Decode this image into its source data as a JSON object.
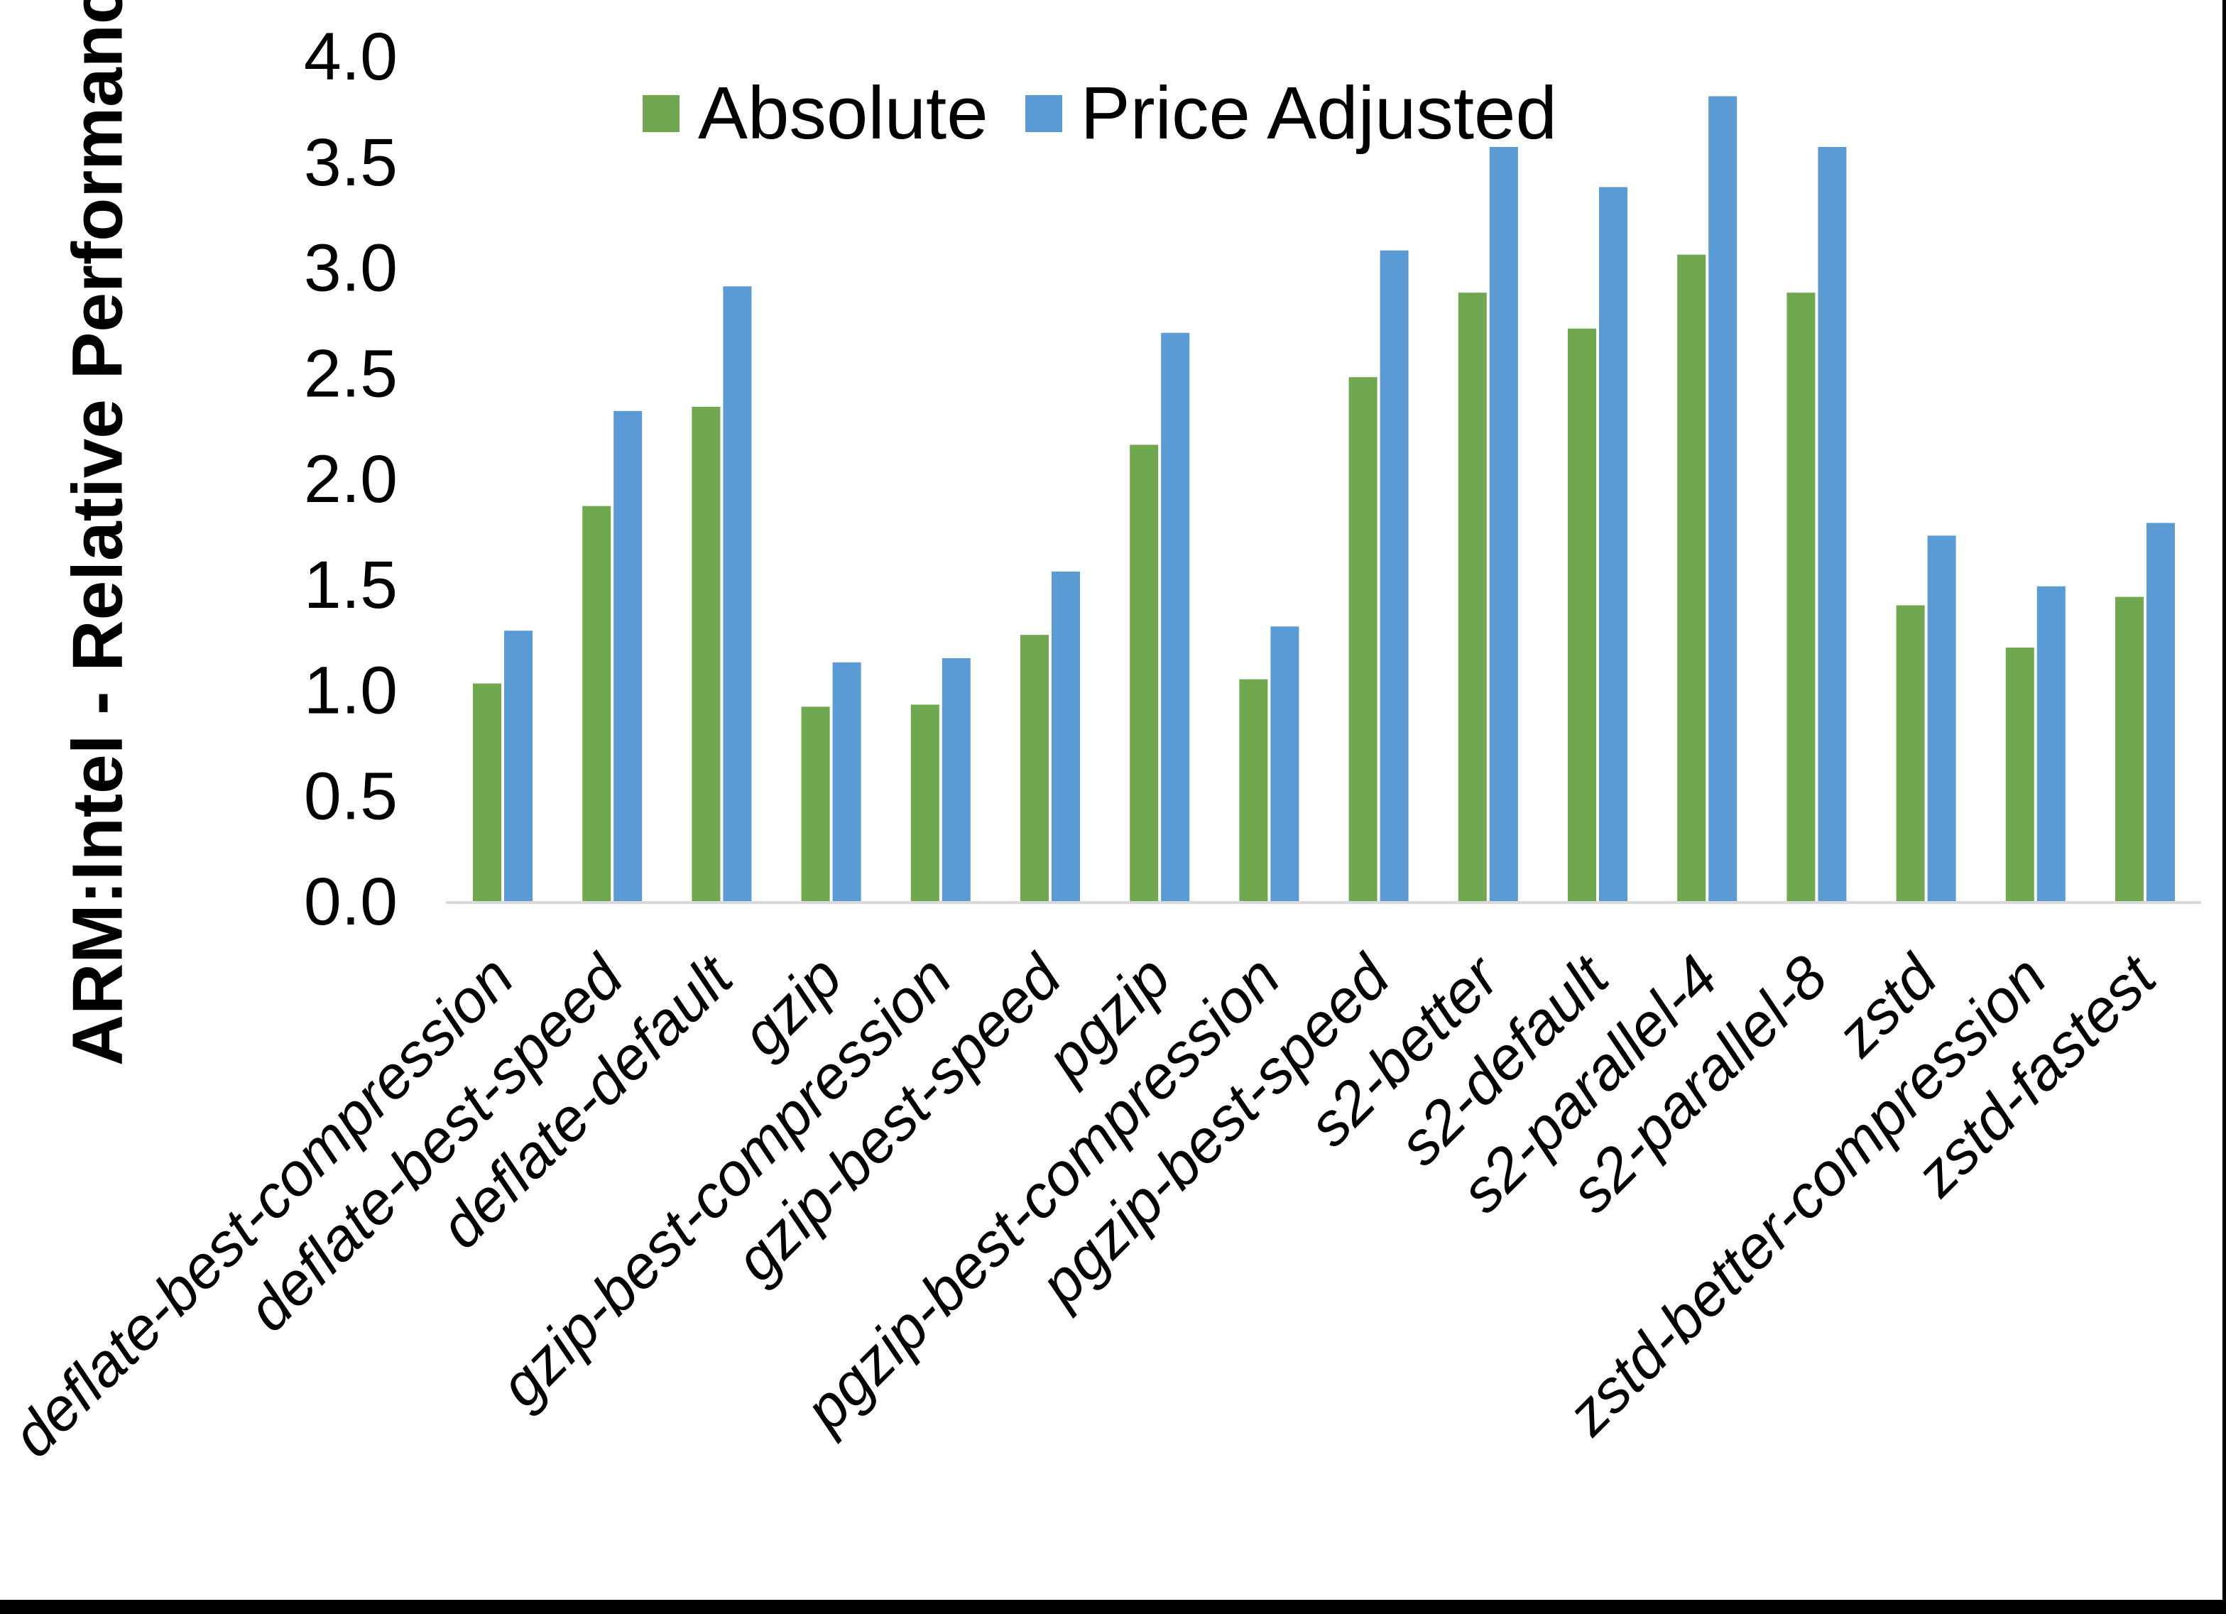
{
  "window": {
    "background": "#FFFFFF",
    "border_right_color": "#000000",
    "border_bottom_color": "#000000"
  },
  "chart_data": {
    "type": "bar",
    "title": "",
    "ylabel": "ARM:Intel - Relative Performance",
    "xlabel": "",
    "ylim": [
      0.0,
      4.0
    ],
    "y_tick_step": 0.5,
    "y_ticks": [
      0.0,
      0.5,
      1.0,
      1.5,
      2.0,
      2.5,
      3.0,
      3.5,
      4.0
    ],
    "y_tick_labels": [
      "0.0",
      "0.5",
      "1.0",
      "1.5",
      "2.0",
      "2.5",
      "3.0",
      "3.5",
      "4.0"
    ],
    "grid": false,
    "legend_position": "top-center",
    "axis_line_color": "#D9D9D9",
    "text_color": "#000000",
    "categories": [
      "deflate-best-compression",
      "deflate-best-speed",
      "deflate-default",
      "gzip",
      "gzip-best-compression",
      "gzip-best-speed",
      "pgzip",
      "pgzip-best-compression",
      "pgzip-best-speed",
      "s2-better",
      "s2-default",
      "s2-parallel-4",
      "s2-parallel-8",
      "zstd",
      "zstd-better-compression",
      "zstd-fastest"
    ],
    "series": [
      {
        "name": "Absolute",
        "color": "#6FA84E",
        "values": [
          1.03,
          1.87,
          2.34,
          0.92,
          0.93,
          1.26,
          2.16,
          1.05,
          2.48,
          2.88,
          2.71,
          3.06,
          2.88,
          1.4,
          1.2,
          1.44
        ]
      },
      {
        "name": "Price Adjusted",
        "color": "#5B9BD5",
        "values": [
          1.28,
          2.32,
          2.91,
          1.13,
          1.15,
          1.56,
          2.69,
          1.3,
          3.08,
          3.57,
          3.38,
          3.81,
          3.57,
          1.73,
          1.49,
          1.79
        ]
      }
    ]
  }
}
